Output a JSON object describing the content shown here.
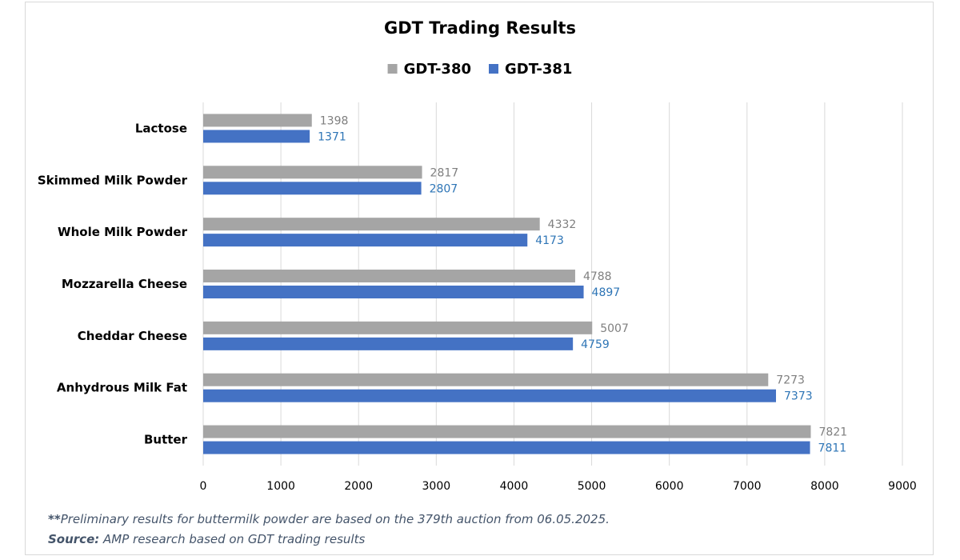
{
  "chart_data": {
    "type": "bar",
    "orientation": "horizontal",
    "title": "GDT Trading Results",
    "categories": [
      "Lactose",
      "Skimmed Milk Powder",
      "Whole Milk Powder",
      "Mozzarella Cheese",
      "Cheddar Cheese",
      "Anhydrous Milk Fat",
      "Butter"
    ],
    "series": [
      {
        "name": "GDT-380",
        "color": "#a5a5a5",
        "label_color": "#7f7f7f",
        "values": [
          1398,
          2817,
          4332,
          4788,
          5007,
          7273,
          7821
        ]
      },
      {
        "name": "GDT-381",
        "color": "#4472c4",
        "label_color": "#2e75b6",
        "values": [
          1371,
          2807,
          4173,
          4897,
          4759,
          7373,
          7811
        ]
      }
    ],
    "xlim": [
      0,
      9000
    ],
    "xticks": [
      0,
      1000,
      2000,
      3000,
      4000,
      5000,
      6000,
      7000,
      8000,
      9000
    ],
    "grid": true,
    "legend_position": "top"
  },
  "notes": {
    "line1_prefix": "**",
    "line1_text": "Preliminary results for buttermilk powder are based on the 379th auction from 06.05.2025.",
    "line2_prefix": "Source:",
    "line2_text": " AMP research based on GDT trading results"
  }
}
